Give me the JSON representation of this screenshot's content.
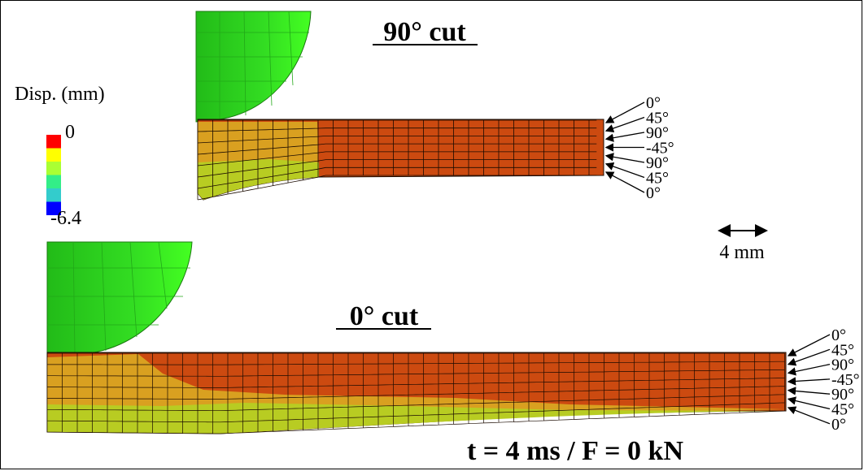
{
  "titles": {
    "top": "90° cut",
    "bottom": "0° cut",
    "footer": "t = 4 ms / F = 0 kN"
  },
  "legend": {
    "title": "Disp. (mm)",
    "max_label": "0",
    "min_label": "-6.4",
    "colors": [
      "#ff0000",
      "#ffff00",
      "#aaff33",
      "#33ee88",
      "#33cccc",
      "#0000ff"
    ]
  },
  "scale_bar": {
    "label": "4 mm"
  },
  "ply_labels_top": [
    "0°",
    "45°",
    "90°",
    "-45°",
    "90°",
    "45°",
    "0°"
  ],
  "ply_labels_bottom": [
    "0°",
    "45°",
    "90°",
    "-45°",
    "90°",
    "45°",
    "0°"
  ],
  "colors": {
    "impactor": "#33dd22",
    "laminate": "#cc4a10",
    "damaged": "#d9a020",
    "damaged_low": "#b8cc22",
    "mesh": "#1a0a00"
  }
}
